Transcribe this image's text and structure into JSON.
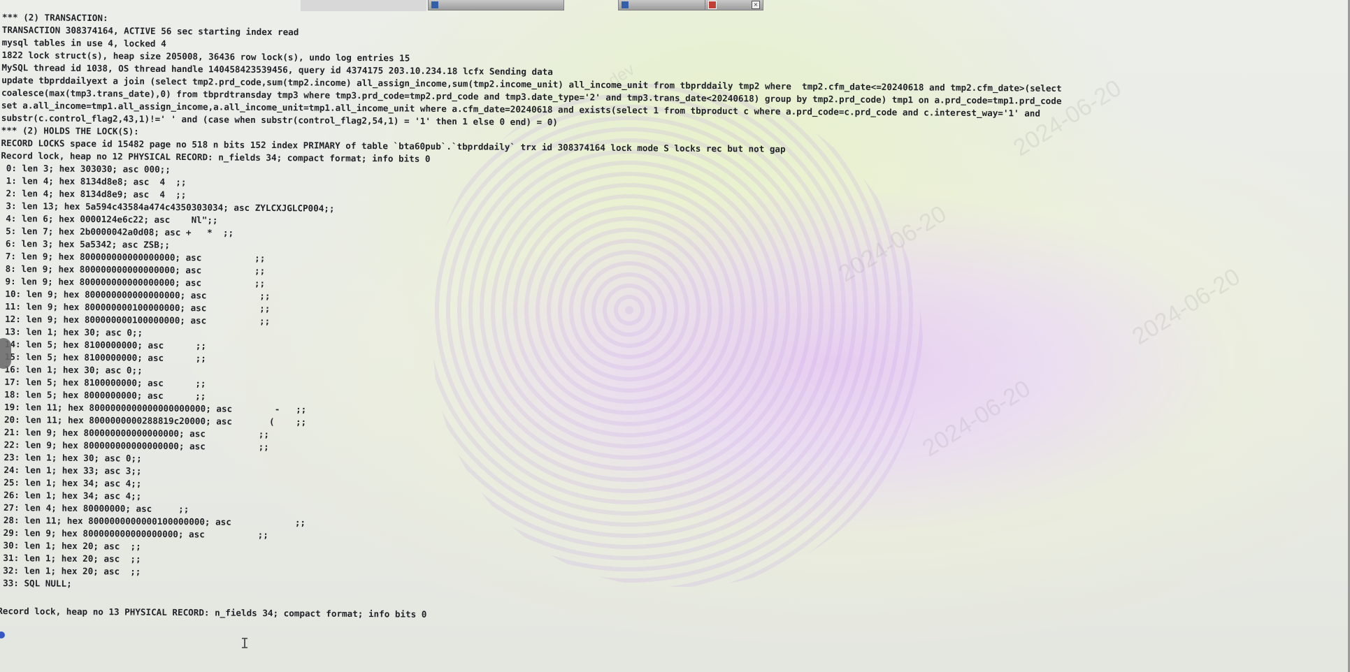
{
  "taskbar": {
    "tabs": [
      {
        "label": "",
        "icon": "window-icon"
      },
      {
        "label": "",
        "icon": "document-icon"
      },
      {
        "label": "",
        "icon": "app-icon"
      }
    ]
  },
  "watermark": {
    "date": "2024-06-20",
    "user": "dev"
  },
  "terminal": {
    "lines": [
      "*** (2) TRANSACTION:",
      "TRANSACTION 308374164, ACTIVE 56 sec starting index read",
      "mysql tables in use 4, locked 4",
      "1822 lock struct(s), heap size 205008, 36436 row lock(s), undo log entries 15",
      "MySQL thread id 1038, OS thread handle 140458423539456, query id 4374175 203.10.234.18 lcfx Sending data",
      "update tbprddailyext a join (select tmp2.prd_code,sum(tmp2.income) all_assign_income,sum(tmp2.income_unit) all_income_unit from tbprddaily tmp2 where  tmp2.cfm_date<=20240618 and tmp2.cfm_date>(select",
      "coalesce(max(tmp3.trans_date),0) from tbprdtransday tmp3 where tmp3.prd_code=tmp2.prd_code and tmp3.date_type='2' and tmp3.trans_date<20240618) group by tmp2.prd_code) tmp1 on a.prd_code=tmp1.prd_code",
      "set a.all_income=tmp1.all_assign_income,a.all_income_unit=tmp1.all_income_unit where a.cfm_date=20240618 and exists(select 1 from tbproduct c where a.prd_code=c.prd_code and c.interest_way='1' and",
      "substr(c.control_flag2,43,1)!=' ' and (case when substr(control_flag2,54,1) = '1' then 1 else 0 end) = 0)",
      "*** (2) HOLDS THE LOCK(S):",
      "RECORD LOCKS space id 15482 page no 518 n bits 152 index PRIMARY of table `bta60pub`.`tbprddaily` trx id 308374164 lock mode S locks rec but not gap",
      "Record lock, heap no 12 PHYSICAL RECORD: n_fields 34; compact format; info bits 0",
      " 0: len 3; hex 303030; asc 000;;",
      " 1: len 4; hex 8134d8e8; asc  4  ;;",
      " 2: len 4; hex 8134d8e9; asc  4  ;;",
      " 3: len 13; hex 5a594c43584a474c4350303034; asc ZYLCXJGLCP004;;",
      " 4: len 6; hex 0000124e6c22; asc    Nl\";;",
      " 5: len 7; hex 2b0000042a0d08; asc +   *  ;;",
      " 6: len 3; hex 5a5342; asc ZSB;;",
      " 7: len 9; hex 800000000000000000; asc          ;;",
      " 8: len 9; hex 800000000000000000; asc          ;;",
      " 9: len 9; hex 800000000000000000; asc          ;;",
      " 10: len 9; hex 800000000000000000; asc          ;;",
      " 11: len 9; hex 800000000100000000; asc          ;;",
      " 12: len 9; hex 800000000100000000; asc          ;;",
      " 13: len 1; hex 30; asc 0;;",
      " 14: len 5; hex 8100000000; asc      ;;",
      " 15: len 5; hex 8100000000; asc      ;;",
      " 16: len 1; hex 30; asc 0;;",
      " 17: len 5; hex 8100000000; asc      ;;",
      " 18: len 5; hex 8000000000; asc      ;;",
      " 19: len 11; hex 8000000000000000000000; asc        -   ;;",
      " 20: len 11; hex 8000000000288819c20000; asc       (    ;;",
      " 21: len 9; hex 800000000000000000; asc          ;;",
      " 22: len 9; hex 800000000000000000; asc          ;;",
      " 23: len 1; hex 30; asc 0;;",
      " 24: len 1; hex 33; asc 3;;",
      " 25: len 1; hex 34; asc 4;;",
      " 26: len 1; hex 34; asc 4;;",
      " 27: len 4; hex 80000000; asc     ;;",
      " 28: len 11; hex 8000000000000100000000; asc            ;;",
      " 29: len 9; hex 800000000000000000; asc          ;;",
      " 30: len 1; hex 20; asc  ;;",
      " 31: len 1; hex 20; asc  ;;",
      " 32: len 1; hex 20; asc  ;;",
      " 33: SQL NULL;",
      "",
      "Record lock, heap no 13 PHYSICAL RECORD: n_fields 34; compact format; info bits 0"
    ]
  }
}
